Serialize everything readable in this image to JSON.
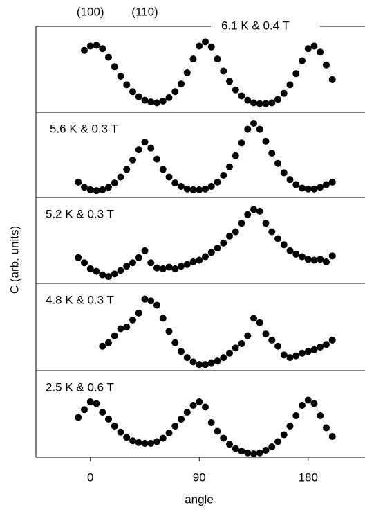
{
  "chart_data": {
    "type": "scatter",
    "x_label": "angle",
    "y_label": "C (arb. units)",
    "xlim": [
      -45,
      227
    ],
    "xticks": [
      0,
      90,
      180
    ],
    "color": "#000000",
    "annotations": [
      {
        "text": "(100)",
        "x": 0
      },
      {
        "text": "(110)",
        "x": 45
      }
    ],
    "panels": [
      {
        "label": "6.1 K & 0.4 T",
        "ylim": [
          0,
          1
        ],
        "x": [
          -5,
          0,
          5,
          10,
          15,
          20,
          25,
          30,
          35,
          40,
          45,
          50,
          55,
          60,
          65,
          70,
          75,
          80,
          85,
          90,
          95,
          100,
          105,
          110,
          115,
          120,
          125,
          130,
          135,
          140,
          145,
          150,
          155,
          160,
          165,
          170,
          175,
          180,
          185,
          190,
          195,
          200
        ],
        "values": [
          0.72,
          0.77,
          0.78,
          0.74,
          0.64,
          0.53,
          0.42,
          0.32,
          0.24,
          0.18,
          0.14,
          0.12,
          0.11,
          0.13,
          0.17,
          0.24,
          0.33,
          0.46,
          0.62,
          0.77,
          0.82,
          0.76,
          0.62,
          0.48,
          0.36,
          0.26,
          0.19,
          0.14,
          0.11,
          0.1,
          0.1,
          0.11,
          0.15,
          0.22,
          0.32,
          0.45,
          0.6,
          0.74,
          0.77,
          0.7,
          0.55,
          0.38
        ]
      },
      {
        "label": "5.6 K & 0.3 T",
        "ylim": [
          0,
          1
        ],
        "x": [
          -10,
          -5,
          0,
          5,
          10,
          15,
          20,
          25,
          30,
          35,
          40,
          45,
          50,
          55,
          60,
          65,
          70,
          75,
          80,
          85,
          90,
          95,
          100,
          105,
          110,
          115,
          120,
          125,
          130,
          135,
          140,
          145,
          150,
          155,
          160,
          165,
          170,
          175,
          180,
          185,
          190,
          195,
          200
        ],
        "values": [
          0.18,
          0.12,
          0.09,
          0.08,
          0.09,
          0.12,
          0.17,
          0.24,
          0.33,
          0.44,
          0.56,
          0.65,
          0.58,
          0.45,
          0.33,
          0.24,
          0.17,
          0.13,
          0.1,
          0.09,
          0.09,
          0.1,
          0.13,
          0.18,
          0.26,
          0.36,
          0.49,
          0.64,
          0.8,
          0.87,
          0.8,
          0.66,
          0.52,
          0.4,
          0.29,
          0.21,
          0.15,
          0.11,
          0.1,
          0.1,
          0.12,
          0.15,
          0.18
        ]
      },
      {
        "label": "5.2 K & 0.3 T",
        "ylim": [
          0,
          1
        ],
        "x": [
          -10,
          -5,
          0,
          5,
          10,
          15,
          20,
          25,
          30,
          35,
          40,
          45,
          50,
          55,
          60,
          65,
          70,
          75,
          80,
          85,
          90,
          95,
          100,
          105,
          110,
          115,
          120,
          125,
          130,
          135,
          140,
          145,
          150,
          155,
          160,
          165,
          170,
          175,
          180,
          185,
          190,
          195,
          200
        ],
        "values": [
          0.3,
          0.24,
          0.17,
          0.14,
          0.1,
          0.08,
          0.11,
          0.15,
          0.2,
          0.24,
          0.3,
          0.38,
          0.24,
          0.18,
          0.17,
          0.19,
          0.17,
          0.2,
          0.22,
          0.25,
          0.27,
          0.31,
          0.36,
          0.41,
          0.47,
          0.55,
          0.6,
          0.7,
          0.8,
          0.86,
          0.84,
          0.7,
          0.6,
          0.52,
          0.45,
          0.38,
          0.34,
          0.31,
          0.28,
          0.27,
          0.28,
          0.25,
          0.32
        ]
      },
      {
        "label": "4.8 K & 0.3 T",
        "ylim": [
          0,
          1
        ],
        "x": [
          10,
          15,
          20,
          25,
          30,
          35,
          40,
          45,
          50,
          55,
          60,
          65,
          70,
          75,
          80,
          85,
          90,
          95,
          100,
          105,
          110,
          115,
          120,
          125,
          130,
          135,
          140,
          145,
          150,
          155,
          160,
          165,
          170,
          175,
          180,
          185,
          190,
          195,
          200
        ],
        "values": [
          0.28,
          0.32,
          0.4,
          0.48,
          0.5,
          0.58,
          0.66,
          0.82,
          0.8,
          0.75,
          0.6,
          0.45,
          0.32,
          0.22,
          0.15,
          0.1,
          0.07,
          0.07,
          0.09,
          0.11,
          0.15,
          0.2,
          0.26,
          0.31,
          0.4,
          0.6,
          0.55,
          0.42,
          0.35,
          0.28,
          0.18,
          0.15,
          0.17,
          0.2,
          0.22,
          0.24,
          0.27,
          0.3,
          0.35
        ]
      },
      {
        "label": "2.5 K & 0.6 T",
        "ylim": [
          0,
          1
        ],
        "x": [
          -10,
          -5,
          0,
          5,
          10,
          15,
          20,
          25,
          30,
          35,
          40,
          45,
          50,
          55,
          60,
          65,
          70,
          75,
          80,
          85,
          90,
          95,
          100,
          105,
          110,
          115,
          120,
          125,
          130,
          135,
          140,
          145,
          150,
          155,
          160,
          165,
          170,
          175,
          180,
          185,
          190,
          195,
          200
        ],
        "values": [
          0.46,
          0.55,
          0.64,
          0.62,
          0.52,
          0.44,
          0.36,
          0.29,
          0.23,
          0.19,
          0.17,
          0.16,
          0.16,
          0.18,
          0.22,
          0.28,
          0.36,
          0.44,
          0.52,
          0.6,
          0.64,
          0.58,
          0.4,
          0.3,
          0.22,
          0.15,
          0.1,
          0.07,
          0.05,
          0.04,
          0.05,
          0.08,
          0.12,
          0.18,
          0.26,
          0.36,
          0.48,
          0.6,
          0.66,
          0.62,
          0.48,
          0.34,
          0.24
        ]
      }
    ]
  }
}
